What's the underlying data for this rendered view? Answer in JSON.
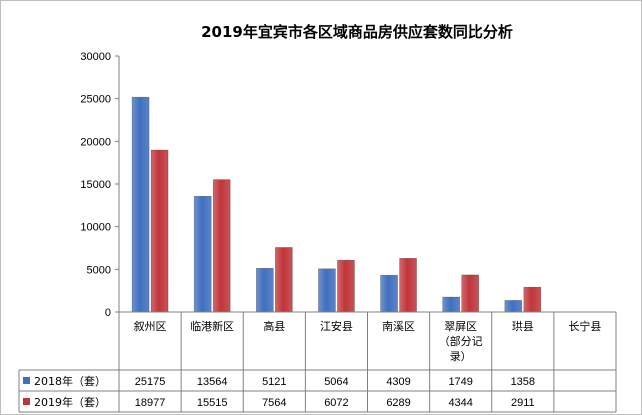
{
  "chart_data": {
    "type": "bar",
    "title": "2019年宜宾市各区域商品房供应套数同比分析",
    "categories": [
      "叙州区",
      "临港新区",
      "高县",
      "江安县",
      "南溪区",
      "翠屏区（部分记录）",
      "珙县",
      "长宁县"
    ],
    "category_lines": [
      [
        "叙州区"
      ],
      [
        "临港新区"
      ],
      [
        "高县"
      ],
      [
        "江安县"
      ],
      [
        "南溪区"
      ],
      [
        "翠屏区",
        "（部分记",
        "录）"
      ],
      [
        "珙县"
      ],
      [
        "长宁县"
      ]
    ],
    "series": [
      {
        "name": "2018年（套）",
        "color": "#3f6fbe",
        "values": [
          25175,
          13564,
          5121,
          5064,
          4309,
          1749,
          1358,
          null
        ],
        "labels": [
          "25175",
          "13564",
          "5121",
          "5064",
          "4309",
          "1749",
          "1358",
          ""
        ]
      },
      {
        "name": "2019年（套）",
        "color": "#c0353a",
        "values": [
          18977,
          15515,
          7564,
          6072,
          6289,
          4344,
          2911,
          null
        ],
        "labels": [
          "18977",
          "15515",
          "7564",
          "6072",
          "6289",
          "4344",
          "2911",
          ""
        ]
      }
    ],
    "ylim": [
      0,
      30000
    ],
    "yticks": [
      0,
      5000,
      10000,
      15000,
      20000,
      25000,
      30000
    ],
    "ytick_labels": [
      "0",
      "5000",
      "10000",
      "15000",
      "20000",
      "25000",
      "30000"
    ],
    "grid": false,
    "legend": "data-table-left",
    "xlabel": "",
    "ylabel": ""
  }
}
